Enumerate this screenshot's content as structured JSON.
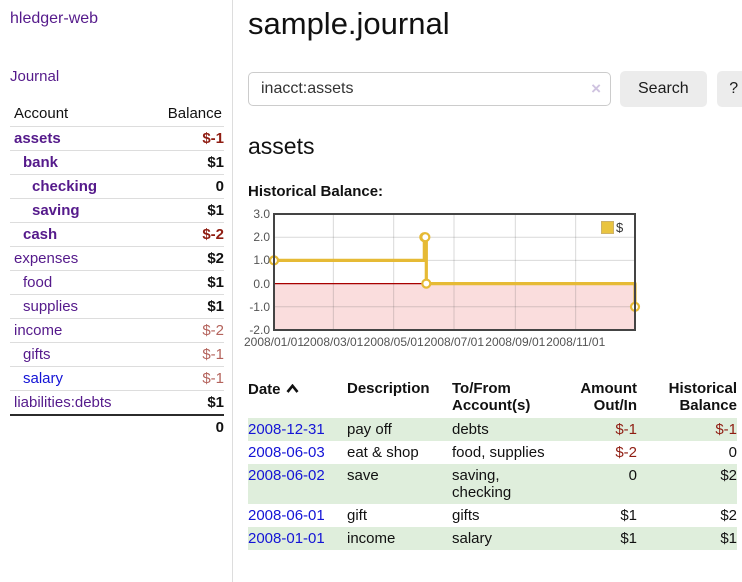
{
  "app": {
    "title": "hledger-web"
  },
  "sidebar": {
    "journal_label": "Journal",
    "columns": {
      "account": "Account",
      "balance": "Balance"
    },
    "accounts": [
      {
        "name": "assets",
        "level": 1,
        "balance": "$-1",
        "bold": true,
        "neg": "strong"
      },
      {
        "name": "bank",
        "level": 2,
        "balance": "$1",
        "bold": true
      },
      {
        "name": "checking",
        "level": 3,
        "balance": "0",
        "bold": true
      },
      {
        "name": "saving",
        "level": 3,
        "balance": "$1",
        "bold": true
      },
      {
        "name": "cash",
        "level": 2,
        "balance": "$-2",
        "bold": true,
        "neg": "strong"
      },
      {
        "name": "expenses",
        "level": 1,
        "balance": "$2"
      },
      {
        "name": "food",
        "level": 2,
        "balance": "$1"
      },
      {
        "name": "supplies",
        "level": 2,
        "balance": "$1"
      },
      {
        "name": "income",
        "level": 1,
        "balance": "$-2",
        "neg": "soft"
      },
      {
        "name": "gifts",
        "level": 2,
        "balance": "$-1",
        "neg": "soft"
      },
      {
        "name": "salary",
        "level": 2,
        "balance": "$-1",
        "neg": "soft",
        "link": "blue"
      },
      {
        "name": "liabilities:debts",
        "level": 1,
        "balance": "$1"
      }
    ],
    "total": "0"
  },
  "header": {
    "title": "sample.journal"
  },
  "search": {
    "value": "inacct:assets",
    "clear_icon": "×",
    "button_label": "Search",
    "help_label": "?"
  },
  "account_page": {
    "title": "assets",
    "chart_label": "Historical Balance:"
  },
  "chart_data": {
    "type": "line",
    "title": "Historical Balance",
    "step": true,
    "series": [
      {
        "name": "$",
        "color": "#e6ba35",
        "points": [
          [
            "2008-01-01",
            1
          ],
          [
            "2008-06-01",
            2
          ],
          [
            "2008-06-02",
            2
          ],
          [
            "2008-06-03",
            0
          ],
          [
            "2008-12-31",
            -1
          ]
        ]
      }
    ],
    "xlim": [
      "2008-01-01",
      "2008-12-31"
    ],
    "ylim": [
      -2,
      3
    ],
    "y_ticks": [
      3.0,
      2.0,
      1.0,
      0.0,
      -1.0,
      -2.0
    ],
    "x_ticks": [
      "2008/01/01",
      "2008/03/01",
      "2008/05/01",
      "2008/07/01",
      "2008/09/01",
      "2008/11/01"
    ],
    "grid": true,
    "negative_fill": "#fadddd",
    "zero_line_color": "#a80000",
    "border_color": "#444444",
    "legend_position": "top-right"
  },
  "register": {
    "columns": {
      "date": "Date",
      "description": "Description",
      "accounts": "To/From\nAccount(s)",
      "amount": "Amount\nOut/In",
      "balance": "Historical\nBalance"
    },
    "rows": [
      {
        "date": "2008-12-31",
        "description": "pay off",
        "accounts": "debts",
        "amount": "$-1",
        "balance": "$-1",
        "amount_neg": true,
        "balance_neg": true,
        "shade": true
      },
      {
        "date": "2008-06-03",
        "description": "eat & shop",
        "accounts": "food, supplies",
        "amount": "$-2",
        "balance": "0",
        "amount_neg": true,
        "balance_neg": false,
        "shade": false
      },
      {
        "date": "2008-06-02",
        "description": "save",
        "accounts": "saving, checking",
        "amount": "0",
        "balance": "$2",
        "amount_neg": false,
        "balance_neg": false,
        "shade": true
      },
      {
        "date": "2008-06-01",
        "description": "gift",
        "accounts": "gifts",
        "amount": "$1",
        "balance": "$2",
        "amount_neg": false,
        "balance_neg": false,
        "shade": false
      },
      {
        "date": "2008-01-01",
        "description": "income",
        "accounts": "salary",
        "amount": "$1",
        "balance": "$1",
        "amount_neg": false,
        "balance_neg": false,
        "shade": true
      }
    ]
  }
}
